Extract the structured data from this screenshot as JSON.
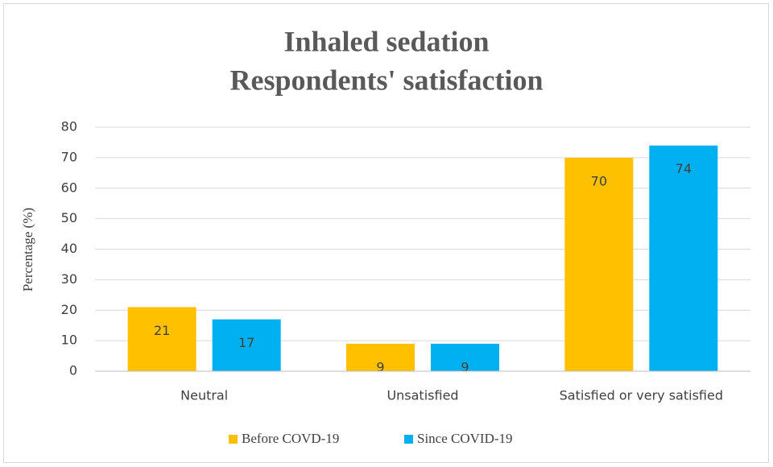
{
  "chart_data": {
    "type": "bar",
    "title": [
      "Inhaled sedation",
      "Respondents' satisfaction"
    ],
    "y_label": "Percentage (%)",
    "categories": [
      "Neutral",
      "Unsatisfied",
      "Satisfied or very satisfied"
    ],
    "series": [
      {
        "name": "Before COVD-19",
        "color": "#ffc000",
        "values": [
          21,
          9,
          70
        ]
      },
      {
        "name": "Since COVID-19",
        "color": "#00b0f0",
        "values": [
          17,
          9,
          74
        ]
      }
    ],
    "ylim": [
      0,
      80
    ],
    "yticks": [
      0,
      10,
      20,
      30,
      40,
      50,
      60,
      70,
      80
    ],
    "grid": true,
    "legend": "bottom"
  }
}
